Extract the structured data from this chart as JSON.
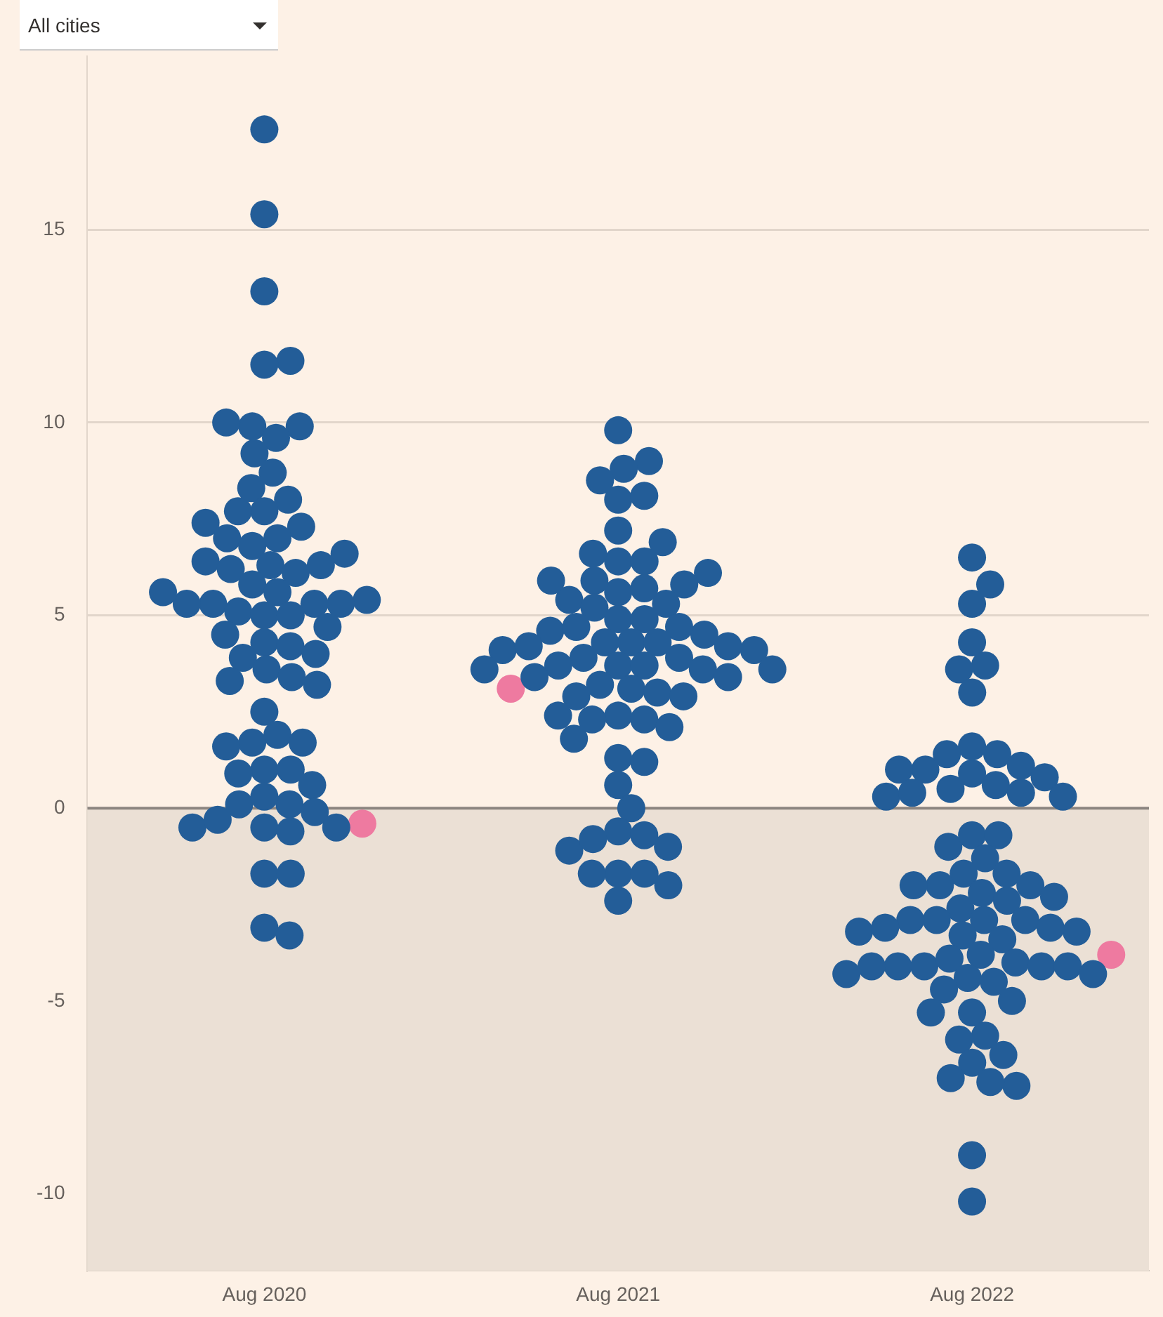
{
  "chart_data": {
    "type": "scatter",
    "categories": [
      "Aug 2020",
      "Aug 2021",
      "Aug 2022"
    ],
    "annotations": [
      "All cities"
    ],
    "series": [
      {
        "color": "#235d98",
        "x": [
          "Aug 2020",
          "Aug 2020",
          "Aug 2020",
          "Aug 2020",
          "Aug 2020",
          "Aug 2020",
          "Aug 2020",
          "Aug 2020",
          "Aug 2020",
          "Aug 2020",
          "Aug 2020",
          "Aug 2020",
          "Aug 2020",
          "Aug 2020",
          "Aug 2020",
          "Aug 2020",
          "Aug 2020",
          "Aug 2020",
          "Aug 2020",
          "Aug 2020",
          "Aug 2020",
          "Aug 2020",
          "Aug 2020",
          "Aug 2020",
          "Aug 2020",
          "Aug 2020",
          "Aug 2020",
          "Aug 2020",
          "Aug 2020",
          "Aug 2020",
          "Aug 2020",
          "Aug 2020",
          "Aug 2020",
          "Aug 2020",
          "Aug 2020",
          "Aug 2020",
          "Aug 2020",
          "Aug 2020",
          "Aug 2020",
          "Aug 2020",
          "Aug 2020",
          "Aug 2020",
          "Aug 2020",
          "Aug 2020",
          "Aug 2020",
          "Aug 2020",
          "Aug 2020",
          "Aug 2020",
          "Aug 2020",
          "Aug 2020",
          "Aug 2020",
          "Aug 2020",
          "Aug 2020",
          "Aug 2020",
          "Aug 2020",
          "Aug 2020",
          "Aug 2020",
          "Aug 2020",
          "Aug 2020",
          "Aug 2020",
          "Aug 2020",
          "Aug 2020",
          "Aug 2020",
          "Aug 2020",
          "Aug 2020",
          "Aug 2020",
          "Aug 2020",
          "Aug 2020",
          "Aug 2020",
          "Aug 2021",
          "Aug 2021",
          "Aug 2021",
          "Aug 2021",
          "Aug 2021",
          "Aug 2021",
          "Aug 2021",
          "Aug 2021",
          "Aug 2021",
          "Aug 2021",
          "Aug 2021",
          "Aug 2021",
          "Aug 2021",
          "Aug 2021",
          "Aug 2021",
          "Aug 2021",
          "Aug 2021",
          "Aug 2021",
          "Aug 2021",
          "Aug 2021",
          "Aug 2021",
          "Aug 2021",
          "Aug 2021",
          "Aug 2021",
          "Aug 2021",
          "Aug 2021",
          "Aug 2021",
          "Aug 2021",
          "Aug 2021",
          "Aug 2021",
          "Aug 2021",
          "Aug 2021",
          "Aug 2021",
          "Aug 2021",
          "Aug 2021",
          "Aug 2021",
          "Aug 2021",
          "Aug 2021",
          "Aug 2021",
          "Aug 2021",
          "Aug 2021",
          "Aug 2021",
          "Aug 2021",
          "Aug 2021",
          "Aug 2021",
          "Aug 2021",
          "Aug 2021",
          "Aug 2021",
          "Aug 2021",
          "Aug 2021",
          "Aug 2021",
          "Aug 2021",
          "Aug 2021",
          "Aug 2021",
          "Aug 2021",
          "Aug 2021",
          "Aug 2021",
          "Aug 2021",
          "Aug 2021",
          "Aug 2021",
          "Aug 2021",
          "Aug 2021",
          "Aug 2021",
          "Aug 2021",
          "Aug 2021",
          "Aug 2021",
          "Aug 2021",
          "Aug 2021",
          "Aug 2022",
          "Aug 2022",
          "Aug 2022",
          "Aug 2022",
          "Aug 2022",
          "Aug 2022",
          "Aug 2022",
          "Aug 2022",
          "Aug 2022",
          "Aug 2022",
          "Aug 2022",
          "Aug 2022",
          "Aug 2022",
          "Aug 2022",
          "Aug 2022",
          "Aug 2022",
          "Aug 2022",
          "Aug 2022",
          "Aug 2022",
          "Aug 2022",
          "Aug 2022",
          "Aug 2022",
          "Aug 2022",
          "Aug 2022",
          "Aug 2022",
          "Aug 2022",
          "Aug 2022",
          "Aug 2022",
          "Aug 2022",
          "Aug 2022",
          "Aug 2022",
          "Aug 2022",
          "Aug 2022",
          "Aug 2022",
          "Aug 2022",
          "Aug 2022",
          "Aug 2022",
          "Aug 2022",
          "Aug 2022",
          "Aug 2022",
          "Aug 2022",
          "Aug 2022",
          "Aug 2022",
          "Aug 2022",
          "Aug 2022",
          "Aug 2022",
          "Aug 2022",
          "Aug 2022",
          "Aug 2022",
          "Aug 2022",
          "Aug 2022",
          "Aug 2022",
          "Aug 2022",
          "Aug 2022",
          "Aug 2022",
          "Aug 2022",
          "Aug 2022",
          "Aug 2022",
          "Aug 2022",
          "Aug 2022",
          "Aug 2022",
          "Aug 2022",
          "Aug 2022",
          "Aug 2022",
          "Aug 2022",
          "Aug 2022",
          "Aug 2022",
          "Aug 2022",
          "Aug 2022"
        ],
        "values": [
          17.6,
          15.4,
          13.4,
          11.6,
          11.5,
          9.9,
          9.9,
          10.0,
          9.6,
          9.2,
          8.7,
          8.3,
          8.0,
          7.7,
          7.7,
          7.4,
          7.3,
          7.0,
          7.0,
          6.8,
          6.6,
          6.4,
          6.3,
          6.2,
          6.3,
          6.1,
          5.8,
          5.6,
          5.4,
          5.3,
          5.3,
          5.3,
          5.3,
          5.1,
          5.6,
          5.0,
          5.0,
          4.7,
          4.5,
          4.3,
          4.2,
          4.0,
          3.9,
          3.6,
          3.4,
          3.3,
          3.2,
          2.5,
          1.9,
          1.7,
          1.7,
          1.6,
          1.0,
          1.0,
          0.9,
          0.6,
          0.1,
          -0.1,
          0.1,
          0.3,
          -0.5,
          -0.5,
          -0.6,
          -0.5,
          -0.3,
          -1.7,
          -1.7,
          -3.1,
          -3.3,
          9.8,
          9.0,
          8.8,
          8.0,
          8.1,
          8.5,
          7.2,
          6.9,
          6.4,
          6.6,
          6.4,
          6.1,
          5.6,
          5.4,
          5.7,
          5.8,
          5.9,
          5.9,
          5.2,
          4.9,
          4.9,
          5.3,
          4.6,
          4.5,
          4.7,
          4.7,
          4.3,
          4.3,
          4.1,
          4.2,
          4.1,
          3.9,
          3.7,
          3.7,
          3.6,
          3.7,
          3.6,
          4.2,
          3.9,
          4.3,
          3.6,
          3.2,
          3.1,
          3.4,
          3.4,
          3.0,
          2.9,
          2.9,
          2.4,
          2.4,
          1.8,
          2.3,
          2.3,
          2.1,
          1.3,
          1.2,
          0.6,
          0.0,
          -0.6,
          -1.1,
          -1.0,
          -0.7,
          -0.8,
          -1.7,
          -1.7,
          -2.0,
          -1.7,
          -2.4,
          6.5,
          5.3,
          5.8,
          4.3,
          3.7,
          3.6,
          3.0,
          1.4,
          0.9,
          1.0,
          1.1,
          1.6,
          1.0,
          0.6,
          0.8,
          1.4,
          0.3,
          0.4,
          0.3,
          0.4,
          0.5,
          -1.0,
          -0.7,
          -0.7,
          -1.3,
          -1.7,
          -1.7,
          -2.0,
          -2.0,
          -2.2,
          -2.0,
          -2.3,
          -2.4,
          -2.6,
          -2.9,
          -2.9,
          -2.9,
          -3.2,
          -3.1,
          -2.9,
          -3.3,
          -3.2,
          -3.4,
          -3.1,
          -4.1,
          -4.0,
          -3.8,
          -3.9,
          -4.1,
          -4.1,
          -4.1,
          -4.1,
          -4.3,
          -4.3,
          -4.4,
          -4.5,
          -4.7,
          -5.0,
          -5.3,
          -5.3,
          -5.9,
          -6.4,
          -6.0,
          -6.6,
          -7.2,
          -7.0,
          -7.1,
          -9.0,
          -10.2
        ]
      },
      {
        "color": "#ee7aa0",
        "x": [
          "Aug 2020",
          "Aug 2021",
          "Aug 2022"
        ],
        "values": [
          -0.4,
          3.1,
          -3.8
        ]
      }
    ],
    "ylim": [
      -12,
      19.5
    ],
    "yticks": [
      -10,
      -5,
      0,
      5,
      10,
      15
    ],
    "grid": "y",
    "marker": "circle",
    "bands": [
      {
        "axis": "y",
        "from": -12,
        "to": 0,
        "color": "#ebe0d5"
      }
    ],
    "ref_lines": [
      {
        "axis": "y",
        "value": 0,
        "color": "#8c8580"
      }
    ]
  }
}
